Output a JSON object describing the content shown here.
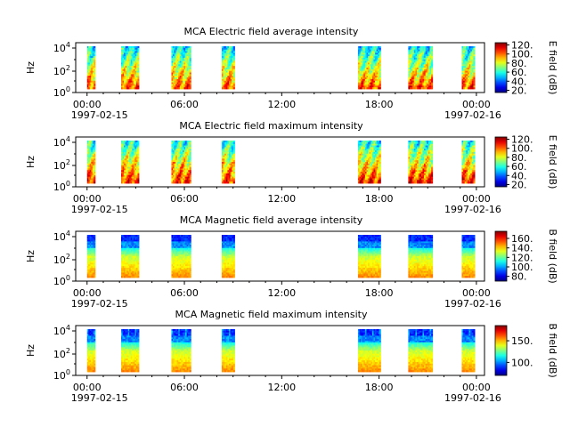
{
  "chart_data": [
    {
      "type": "heatmap",
      "title": "MCA  Electric field average intensity",
      "ylabel": "Hz",
      "y_scale": "log",
      "y_ticks": [
        "10^4",
        "10^2",
        "10^0"
      ],
      "x_ticks": [
        "00:00",
        "06:00",
        "12:00",
        "18:00",
        "00:00"
      ],
      "x_date_start": "1997-02-15",
      "x_date_end": "1997-02-16",
      "x_range_hours": [
        -0.7,
        24.5
      ],
      "data_blocks_hours": [
        [
          0.0,
          0.5
        ],
        [
          2.1,
          3.2
        ],
        [
          5.2,
          6.4
        ],
        [
          8.3,
          9.1
        ],
        [
          16.7,
          18.1
        ],
        [
          19.8,
          21.3
        ],
        [
          23.1,
          23.9
        ]
      ],
      "colorbar": {
        "label": "E field (dB)",
        "range": [
          15,
          125
        ],
        "ticks": [
          120,
          100,
          80,
          60,
          40,
          20
        ],
        "colormap": "jet"
      }
    },
    {
      "type": "heatmap",
      "title": "MCA  Electric field maximum intensity",
      "ylabel": "Hz",
      "y_scale": "log",
      "y_ticks": [
        "10^4",
        "10^2",
        "10^0"
      ],
      "x_ticks": [
        "00:00",
        "06:00",
        "12:00",
        "18:00",
        "00:00"
      ],
      "x_date_start": "1997-02-15",
      "x_date_end": "1997-02-16",
      "x_range_hours": [
        -0.7,
        24.5
      ],
      "data_blocks_hours": [
        [
          0.0,
          0.5
        ],
        [
          2.1,
          3.2
        ],
        [
          5.2,
          6.4
        ],
        [
          8.3,
          9.1
        ],
        [
          16.7,
          18.1
        ],
        [
          19.8,
          21.3
        ],
        [
          23.1,
          23.9
        ]
      ],
      "colorbar": {
        "label": "E field (dB)",
        "range": [
          15,
          125
        ],
        "ticks": [
          120,
          100,
          80,
          60,
          40,
          20
        ],
        "colormap": "jet"
      }
    },
    {
      "type": "heatmap",
      "title": "MCA  Magnetic field average intensity",
      "ylabel": "Hz",
      "y_scale": "log",
      "y_ticks": [
        "10^4",
        "10^2",
        "10^0"
      ],
      "x_ticks": [
        "00:00",
        "06:00",
        "12:00",
        "18:00",
        "00:00"
      ],
      "x_date_start": "1997-02-15",
      "x_date_end": "1997-02-16",
      "x_range_hours": [
        -0.7,
        24.5
      ],
      "data_blocks_hours": [
        [
          0.0,
          0.5
        ],
        [
          2.1,
          3.2
        ],
        [
          5.2,
          6.4
        ],
        [
          8.3,
          9.1
        ],
        [
          16.7,
          18.1
        ],
        [
          19.8,
          21.3
        ],
        [
          23.1,
          23.9
        ]
      ],
      "colorbar": {
        "label": "B field (dB)",
        "range": [
          70,
          175
        ],
        "ticks": [
          160,
          140,
          120,
          100,
          80
        ],
        "colormap": "jet"
      }
    },
    {
      "type": "heatmap",
      "title": "MCA  Magnetic field maximum intensity",
      "ylabel": "Hz",
      "y_scale": "log",
      "y_ticks": [
        "10^4",
        "10^2",
        "10^0"
      ],
      "x_ticks": [
        "00:00",
        "06:00",
        "12:00",
        "18:00",
        "00:00"
      ],
      "x_date_start": "1997-02-15",
      "x_date_end": "1997-02-16",
      "x_range_hours": [
        -0.7,
        24.5
      ],
      "data_blocks_hours": [
        [
          0.0,
          0.5
        ],
        [
          2.1,
          3.2
        ],
        [
          5.2,
          6.4
        ],
        [
          8.3,
          9.1
        ],
        [
          16.7,
          18.1
        ],
        [
          19.8,
          21.3
        ],
        [
          23.1,
          23.9
        ]
      ],
      "colorbar": {
        "label": "B field (dB)",
        "range": [
          70,
          185
        ],
        "ticks": [
          150,
          100
        ],
        "colormap": "jet"
      }
    }
  ]
}
